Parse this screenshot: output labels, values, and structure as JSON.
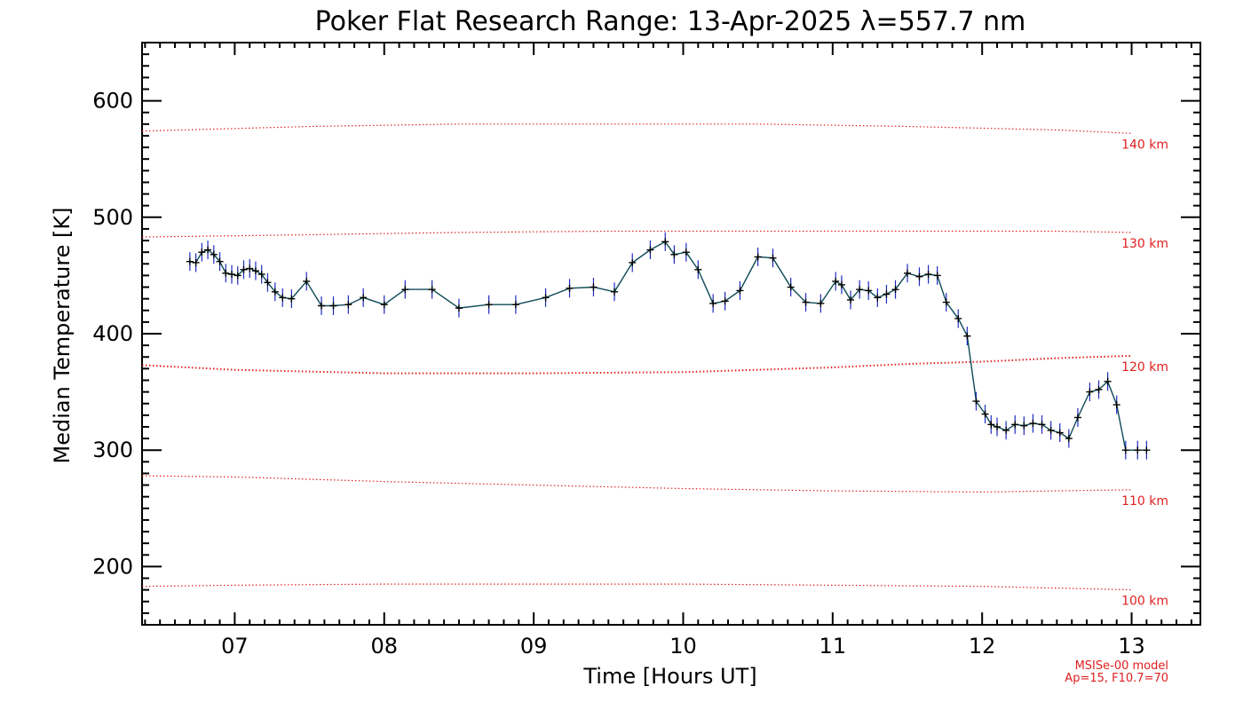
{
  "chart_data": {
    "type": "line",
    "title": "Poker Flat Research Range: 13-Apr-2025 λ=557.7 nm",
    "xlabel": "Time [Hours UT]",
    "ylabel": "Median Temperature [K]",
    "xlim": [
      6.38,
      13.46
    ],
    "ylim": [
      150,
      650
    ],
    "xticks": [
      7,
      8,
      9,
      10,
      11,
      12,
      13
    ],
    "xtick_labels": [
      "07",
      "08",
      "09",
      "10",
      "11",
      "12",
      "13"
    ],
    "yticks": [
      200,
      300,
      400,
      500,
      600
    ],
    "ytick_labels": [
      "200",
      "300",
      "400",
      "500",
      "600"
    ],
    "grid": false,
    "colors": {
      "series": "#0d4b57",
      "points": "#000000",
      "errorbars": "#1e2bbf",
      "model": "#e02020"
    },
    "series": [
      {
        "x": [
          6.7,
          6.74,
          6.78,
          6.82,
          6.86,
          6.9,
          6.94,
          6.98,
          7.02,
          7.06,
          7.1,
          7.14,
          7.18,
          7.22,
          7.27,
          7.32,
          7.38,
          7.48,
          7.58,
          7.66,
          7.76,
          7.86,
          8.0,
          8.14,
          8.32,
          8.5,
          8.7,
          8.88,
          9.08,
          9.24,
          9.4,
          9.54,
          9.66,
          9.78,
          9.88,
          9.94,
          10.02,
          10.1,
          10.2,
          10.28,
          10.38,
          10.5,
          10.6,
          10.72,
          10.82,
          10.92,
          11.02,
          11.06,
          11.12,
          11.18,
          11.24,
          11.3,
          11.36,
          11.42,
          11.5,
          11.58,
          11.64,
          11.7,
          11.76,
          11.84,
          11.9,
          11.96,
          12.02,
          12.06,
          12.1,
          12.16,
          12.22,
          12.28,
          12.34,
          12.4,
          12.46,
          12.52,
          12.58,
          12.64,
          12.72,
          12.78,
          12.84,
          12.9,
          12.96,
          13.04,
          13.1
        ],
        "y": [
          462,
          461,
          470,
          472,
          468,
          462,
          452,
          451,
          450,
          455,
          456,
          454,
          451,
          444,
          436,
          431,
          430,
          445,
          424,
          424,
          425,
          431,
          425,
          438,
          438,
          422,
          425,
          425,
          431,
          439,
          440,
          436,
          461,
          472,
          479,
          468,
          470,
          455,
          426,
          428,
          437,
          466,
          465,
          440,
          427,
          426,
          445,
          442,
          429,
          438,
          437,
          431,
          434,
          438,
          452,
          449,
          451,
          450,
          427,
          413,
          398,
          342,
          331,
          322,
          320,
          317,
          322,
          321,
          323,
          322,
          317,
          315,
          310,
          328,
          350,
          352,
          359,
          339,
          300,
          300,
          300
        ],
        "y_err": [
          8,
          8,
          8,
          8,
          8,
          8,
          8,
          8,
          8,
          8,
          8,
          8,
          8,
          8,
          8,
          8,
          8,
          8,
          8,
          8,
          8,
          8,
          8,
          8,
          8,
          8,
          8,
          8,
          8,
          8,
          8,
          8,
          8,
          8,
          8,
          8,
          8,
          8,
          8,
          8,
          8,
          8,
          8,
          8,
          8,
          8,
          8,
          8,
          8,
          8,
          8,
          8,
          8,
          8,
          8,
          8,
          8,
          8,
          8,
          8,
          8,
          8,
          8,
          8,
          8,
          8,
          8,
          8,
          8,
          8,
          8,
          8,
          8,
          8,
          8,
          8,
          8,
          8,
          8,
          8,
          8
        ]
      }
    ],
    "model_curves": [
      {
        "label": "140 km",
        "x": [
          6.38,
          7.5,
          8.5,
          9.5,
          10.5,
          11.5,
          12.5,
          13.0
        ],
        "y": [
          574,
          578,
          580,
          580,
          580,
          578,
          575,
          572
        ]
      },
      {
        "label": "130 km",
        "x": [
          6.38,
          7.5,
          8.5,
          9.5,
          10.5,
          11.5,
          12.5,
          13.0
        ],
        "y": [
          483,
          485,
          487,
          488,
          488,
          488,
          488,
          487
        ]
      },
      {
        "label": "120 km",
        "x": [
          6.38,
          7.0,
          8.0,
          9.0,
          10.0,
          11.0,
          11.5,
          12.0,
          12.5,
          13.0
        ],
        "y": [
          373,
          369,
          366,
          366,
          367,
          371,
          374,
          376,
          379,
          381
        ]
      },
      {
        "label": "110 km",
        "x": [
          6.38,
          7.0,
          8.0,
          9.0,
          10.0,
          11.0,
          12.0,
          13.0
        ],
        "y": [
          278,
          277,
          273,
          270,
          267,
          265,
          264,
          266
        ]
      },
      {
        "label": "100 km",
        "x": [
          6.38,
          7.0,
          8.0,
          9.0,
          10.0,
          11.0,
          12.0,
          13.0
        ],
        "y": [
          183,
          184,
          185,
          185,
          185,
          184,
          183,
          180
        ]
      }
    ],
    "model_note": [
      "MSISe-00 model",
      "Ap=15, F10.7=70"
    ]
  }
}
